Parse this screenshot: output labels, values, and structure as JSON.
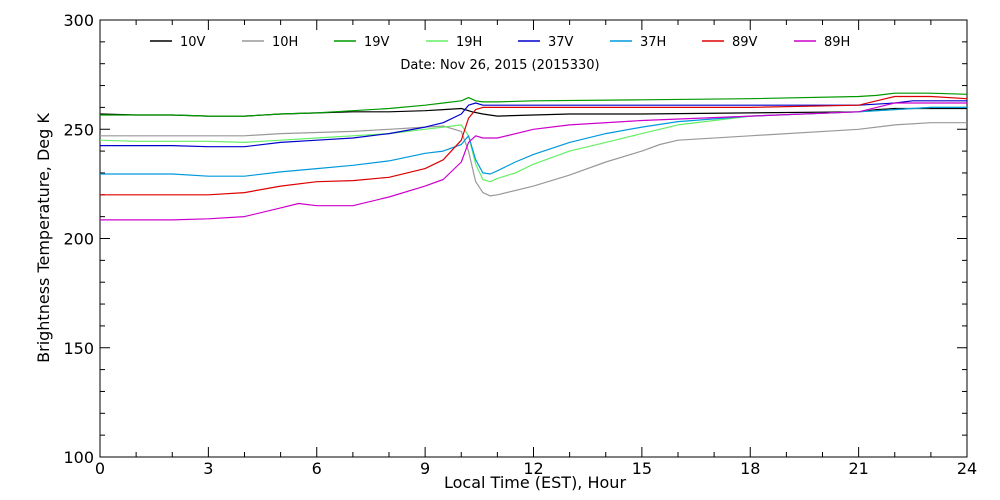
{
  "chart_data": {
    "type": "line",
    "annotation": "Date: Nov 26, 2015 (2015330)",
    "xlabel": "Local Time (EST), Hour",
    "ylabel": "Brightness Temperature, Deg K",
    "xlim": [
      0,
      24
    ],
    "ylim": [
      100,
      300
    ],
    "x_ticks": [
      0,
      3,
      6,
      9,
      12,
      15,
      18,
      21,
      24
    ],
    "y_ticks": [
      100,
      150,
      200,
      250,
      300
    ],
    "x_tick_labels": [
      "0",
      "3",
      "6",
      "9",
      "12",
      "15",
      "18",
      "21",
      "24"
    ],
    "y_tick_labels": [
      "100",
      "150",
      "200",
      "250",
      "300"
    ],
    "grid": false,
    "legend_position": "top",
    "series": [
      {
        "name": "10V",
        "color": "#000000",
        "x": [
          0,
          1,
          2,
          3,
          4,
          5,
          6,
          7,
          8,
          9,
          9.5,
          10,
          10.3,
          10.6,
          11,
          12,
          13,
          15,
          18,
          21,
          21.5,
          22,
          23,
          24
        ],
        "y": [
          257,
          256.5,
          256.5,
          256,
          256,
          257,
          257.5,
          258,
          258,
          258.5,
          259,
          259.5,
          258,
          257,
          256,
          256.5,
          257,
          257,
          257.5,
          258,
          259,
          259.5,
          259.5,
          259.5
        ]
      },
      {
        "name": "10H",
        "color": "#999999",
        "x": [
          0,
          1,
          2,
          3,
          4,
          5,
          6,
          7,
          8,
          9,
          9.5,
          10,
          10.2,
          10.4,
          10.6,
          10.8,
          11,
          12,
          13,
          14,
          15,
          15.5,
          16,
          18,
          21,
          22,
          23,
          24
        ],
        "y": [
          247,
          247,
          247,
          247,
          247,
          248,
          248.5,
          249,
          250,
          251,
          251.5,
          249,
          240,
          226,
          221,
          219.5,
          220,
          224,
          229,
          235,
          240,
          243,
          245,
          247,
          250,
          252,
          253,
          253
        ]
      },
      {
        "name": "19V",
        "color": "#009900",
        "x": [
          0,
          1,
          2,
          3,
          4,
          5,
          6,
          7,
          8,
          9,
          9.5,
          10,
          10.2,
          10.4,
          10.6,
          11,
          12,
          15,
          18,
          21,
          21.5,
          22,
          23,
          24
        ],
        "y": [
          256.5,
          256.5,
          256.5,
          256,
          256,
          257,
          257.5,
          258.5,
          259.5,
          261,
          262,
          263,
          264.5,
          263,
          262.5,
          262.5,
          263,
          263.5,
          264,
          265,
          265.5,
          266.5,
          266.5,
          266
        ]
      },
      {
        "name": "19H",
        "color": "#66ee66",
        "x": [
          0,
          1,
          2,
          3,
          4,
          5,
          6,
          7,
          8,
          9,
          9.5,
          10,
          10.2,
          10.4,
          10.6,
          10.8,
          11,
          11.5,
          12,
          13,
          14,
          15,
          16,
          18,
          21,
          22,
          23,
          24
        ],
        "y": [
          245,
          244.5,
          244.5,
          244.5,
          244,
          245,
          246,
          247,
          248,
          250,
          251,
          252,
          247,
          234,
          227,
          226,
          227.5,
          230,
          234,
          240,
          244,
          248,
          252,
          256,
          258,
          259,
          260,
          260
        ]
      },
      {
        "name": "37V",
        "color": "#0000cc",
        "x": [
          0,
          1,
          2,
          3,
          4,
          5,
          6,
          7,
          8,
          9,
          9.5,
          10,
          10.2,
          10.4,
          10.6,
          11,
          12,
          13,
          15,
          18,
          21,
          22,
          22.5,
          23,
          24
        ],
        "y": [
          242.5,
          242.5,
          242.5,
          242,
          242,
          244,
          245,
          246,
          248,
          251,
          253,
          257,
          261,
          262,
          261,
          261,
          261,
          261,
          261,
          261,
          261,
          262,
          263,
          263,
          263
        ]
      },
      {
        "name": "37H",
        "color": "#0099dd",
        "x": [
          0,
          1,
          2,
          3,
          4,
          5,
          6,
          7,
          8,
          9,
          9.5,
          10,
          10.2,
          10.4,
          10.6,
          10.8,
          11,
          11.5,
          12,
          13,
          14,
          15,
          16,
          18,
          21,
          22,
          23,
          24
        ],
        "y": [
          229.5,
          229.5,
          229.5,
          228.5,
          228.5,
          230.5,
          232,
          233.5,
          235.5,
          239,
          240,
          243,
          247,
          236,
          230,
          229.5,
          231,
          235,
          238.5,
          244,
          248,
          251,
          253.5,
          256,
          258,
          259,
          260,
          260
        ]
      },
      {
        "name": "89V",
        "color": "#dd0000",
        "x": [
          0,
          1,
          2,
          3,
          4,
          5,
          6,
          7,
          8,
          9,
          9.5,
          10,
          10.2,
          10.4,
          10.6,
          11,
          12,
          13,
          15,
          18,
          21,
          21.5,
          22,
          23,
          24
        ],
        "y": [
          220,
          220,
          220,
          220,
          221,
          224,
          226,
          226.5,
          228,
          232,
          236,
          245,
          255,
          259,
          260,
          260,
          260,
          260,
          260,
          260,
          261,
          263,
          265,
          265,
          264
        ]
      },
      {
        "name": "89H",
        "color": "#cc00cc",
        "x": [
          0,
          1,
          2,
          3,
          4,
          5,
          5.5,
          6,
          7,
          8,
          9,
          9.5,
          10,
          10.2,
          10.4,
          10.6,
          11,
          12,
          13,
          15,
          18,
          21,
          21.5,
          22,
          23,
          24
        ],
        "y": [
          208.5,
          208.5,
          208.5,
          209,
          210,
          214,
          216,
          215,
          215,
          219,
          224,
          227,
          235,
          244,
          247,
          246,
          246,
          250,
          252,
          254,
          256,
          258,
          260,
          262,
          262,
          262
        ]
      }
    ]
  }
}
